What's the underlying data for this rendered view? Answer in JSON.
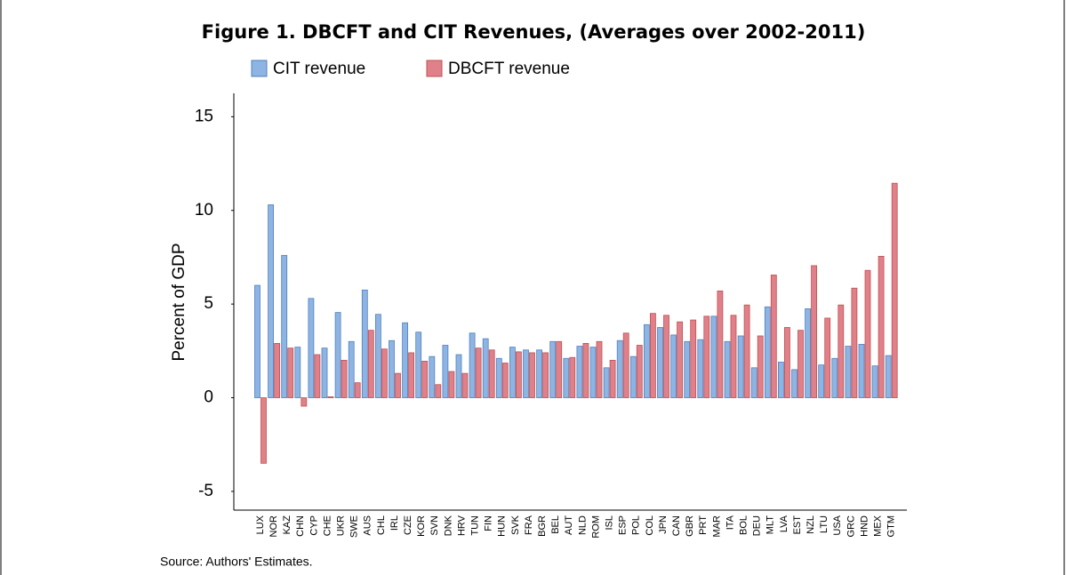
{
  "chart_data": {
    "type": "bar",
    "title": "Figure 1. DBCFT and CIT Revenues, (Averages over 2002-2011)",
    "ylabel": "Percent of GDP",
    "source": "Source: Authors' Estimates.",
    "categories": [
      "LUX",
      "NOR",
      "KAZ",
      "CHN",
      "CYP",
      "CHE",
      "UKR",
      "SWE",
      "AUS",
      "CHL",
      "IRL",
      "CZE",
      "KOR",
      "SVN",
      "DNK",
      "HRV",
      "TUN",
      "FIN",
      "HUN",
      "SVK",
      "FRA",
      "BGR",
      "BEL",
      "AUT",
      "NLD",
      "ROM",
      "ISL",
      "ESP",
      "POL",
      "COL",
      "JPN",
      "CAN",
      "GBR",
      "PRT",
      "MAR",
      "ITA",
      "BOL",
      "DEU",
      "MLT",
      "LVA",
      "EST",
      "NZL",
      "LTU",
      "USA",
      "GRC",
      "HND",
      "MEX",
      "GTM"
    ],
    "series": [
      {
        "name": "CIT revenue",
        "color": "#8eb4e3",
        "edge": "#4f81bd",
        "values": [
          6.0,
          10.3,
          7.6,
          2.7,
          5.3,
          2.65,
          4.55,
          3.0,
          5.75,
          4.45,
          3.05,
          4.0,
          3.5,
          2.2,
          2.8,
          2.3,
          3.45,
          3.15,
          2.1,
          2.7,
          2.55,
          2.55,
          3.0,
          2.1,
          2.75,
          2.7,
          1.6,
          3.05,
          2.2,
          3.9,
          3.75,
          3.35,
          3.0,
          3.1,
          4.35,
          3.0,
          3.3,
          1.6,
          4.85,
          1.9,
          1.5,
          4.75,
          1.75,
          2.1,
          2.75,
          2.85,
          1.7,
          2.25
        ]
      },
      {
        "name": "DBCFT revenue",
        "color": "#e0808a",
        "edge": "#c0504d",
        "values": [
          -3.5,
          2.9,
          2.65,
          -0.45,
          2.3,
          0.05,
          2.0,
          0.8,
          3.6,
          2.6,
          1.3,
          2.4,
          1.95,
          0.7,
          1.4,
          1.3,
          2.65,
          2.55,
          1.85,
          2.45,
          2.4,
          2.4,
          3.0,
          2.15,
          2.9,
          3.0,
          2.0,
          3.45,
          2.8,
          4.5,
          4.4,
          4.05,
          4.15,
          4.35,
          5.7,
          4.4,
          4.95,
          3.3,
          6.55,
          3.75,
          3.6,
          7.05,
          4.25,
          4.95,
          5.85,
          6.8,
          7.55,
          11.45
        ]
      }
    ],
    "ylim": [
      -6,
      16.25
    ],
    "yticks": [
      -5,
      0,
      5,
      10,
      15
    ],
    "grid": false
  }
}
